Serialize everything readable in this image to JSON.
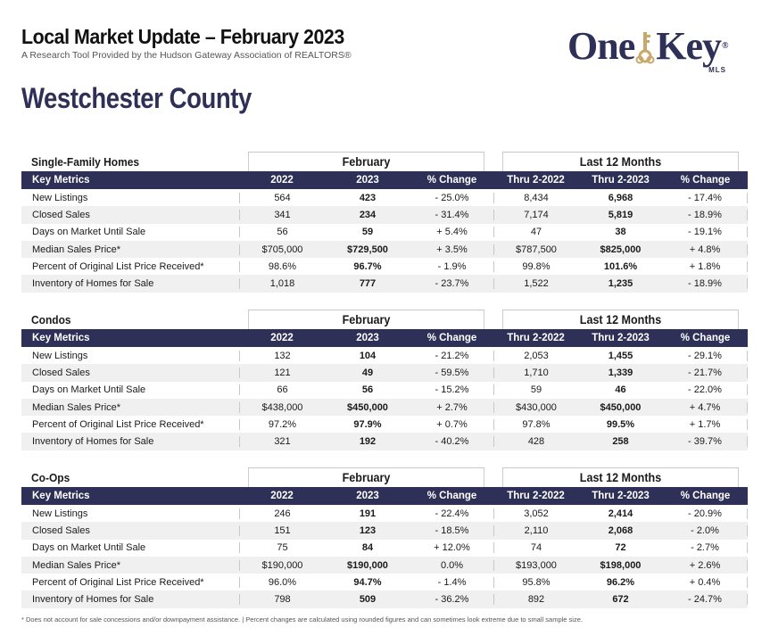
{
  "header": {
    "title": "Local Market Update – February 2023",
    "subtitle": "A Research Tool Provided by the Hudson Gateway Association of REALTORS®"
  },
  "logo": {
    "left": "One",
    "right": "Key",
    "mark": "®",
    "sub": "MLS",
    "brand_color": "#2e3057",
    "key_color": "#c9a96a"
  },
  "county": "Westchester County",
  "column_headers": {
    "metrics": "Key Metrics",
    "y2022": "2022",
    "y2023": "2023",
    "pct": "% Change",
    "thru2022": "Thru 2-2022",
    "thru2023": "Thru 2-2023",
    "pct12": "% Change",
    "group_month": "February",
    "group_12": "Last 12 Months"
  },
  "sections": [
    {
      "title": "Single-Family Homes",
      "rows": [
        [
          "New Listings",
          "564",
          "423",
          "- 25.0%",
          "8,434",
          "6,968",
          "- 17.4%"
        ],
        [
          "Closed Sales",
          "341",
          "234",
          "- 31.4%",
          "7,174",
          "5,819",
          "- 18.9%"
        ],
        [
          "Days on Market Until Sale",
          "56",
          "59",
          "+ 5.4%",
          "47",
          "38",
          "- 19.1%"
        ],
        [
          "Median Sales Price*",
          "$705,000",
          "$729,500",
          "+ 3.5%",
          "$787,500",
          "$825,000",
          "+ 4.8%"
        ],
        [
          "Percent of Original List Price Received*",
          "98.6%",
          "96.7%",
          "- 1.9%",
          "99.8%",
          "101.6%",
          "+ 1.8%"
        ],
        [
          "Inventory of Homes for Sale",
          "1,018",
          "777",
          "- 23.7%",
          "1,522",
          "1,235",
          "- 18.9%"
        ]
      ]
    },
    {
      "title": "Condos",
      "rows": [
        [
          "New Listings",
          "132",
          "104",
          "- 21.2%",
          "2,053",
          "1,455",
          "- 29.1%"
        ],
        [
          "Closed Sales",
          "121",
          "49",
          "- 59.5%",
          "1,710",
          "1,339",
          "- 21.7%"
        ],
        [
          "Days on Market Until Sale",
          "66",
          "56",
          "- 15.2%",
          "59",
          "46",
          "- 22.0%"
        ],
        [
          "Median Sales Price*",
          "$438,000",
          "$450,000",
          "+ 2.7%",
          "$430,000",
          "$450,000",
          "+ 4.7%"
        ],
        [
          "Percent of Original List Price Received*",
          "97.2%",
          "97.9%",
          "+ 0.7%",
          "97.8%",
          "99.5%",
          "+ 1.7%"
        ],
        [
          "Inventory of Homes for Sale",
          "321",
          "192",
          "- 40.2%",
          "428",
          "258",
          "- 39.7%"
        ]
      ]
    },
    {
      "title": "Co-Ops",
      "rows": [
        [
          "New Listings",
          "246",
          "191",
          "- 22.4%",
          "3,052",
          "2,414",
          "- 20.9%"
        ],
        [
          "Closed Sales",
          "151",
          "123",
          "- 18.5%",
          "2,110",
          "2,068",
          "- 2.0%"
        ],
        [
          "Days on Market Until Sale",
          "75",
          "84",
          "+ 12.0%",
          "74",
          "72",
          "- 2.7%"
        ],
        [
          "Median Sales Price*",
          "$190,000",
          "$190,000",
          "0.0%",
          "$193,000",
          "$198,000",
          "+ 2.6%"
        ],
        [
          "Percent of Original List Price Received*",
          "96.0%",
          "94.7%",
          "- 1.4%",
          "95.8%",
          "96.2%",
          "+ 0.4%"
        ],
        [
          "Inventory of Homes for Sale",
          "798",
          "509",
          "- 36.2%",
          "892",
          "672",
          "- 24.7%"
        ]
      ]
    }
  ],
  "footnote": "* Does not account for sale concessions and/or downpayment assistance. | Percent changes are calculated using rounded figures and can sometimes look extreme due to small sample size."
}
